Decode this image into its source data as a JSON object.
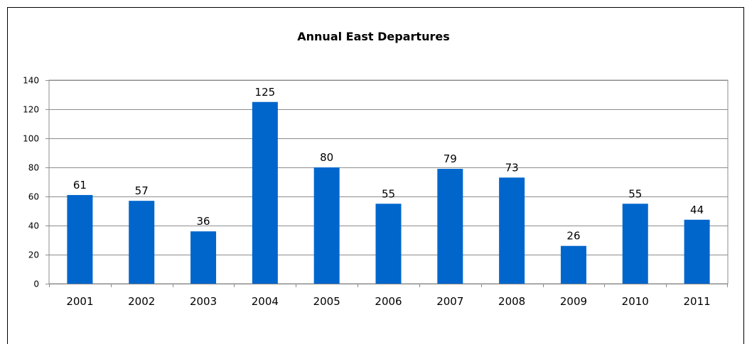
{
  "chart_data": {
    "type": "bar",
    "title": "Annual East Departures",
    "xlabel": "",
    "ylabel": "",
    "categories": [
      "2001",
      "2002",
      "2003",
      "2004",
      "2005",
      "2006",
      "2007",
      "2008",
      "2009",
      "2010",
      "2011"
    ],
    "values": [
      61,
      57,
      36,
      125,
      80,
      55,
      79,
      73,
      26,
      55,
      44
    ],
    "ylim": [
      0,
      140
    ],
    "yticks": [
      0,
      20,
      40,
      60,
      80,
      100,
      120,
      140
    ],
    "grid": true,
    "legend": "none",
    "bar_color": "#0066CC",
    "data_labels": true
  }
}
